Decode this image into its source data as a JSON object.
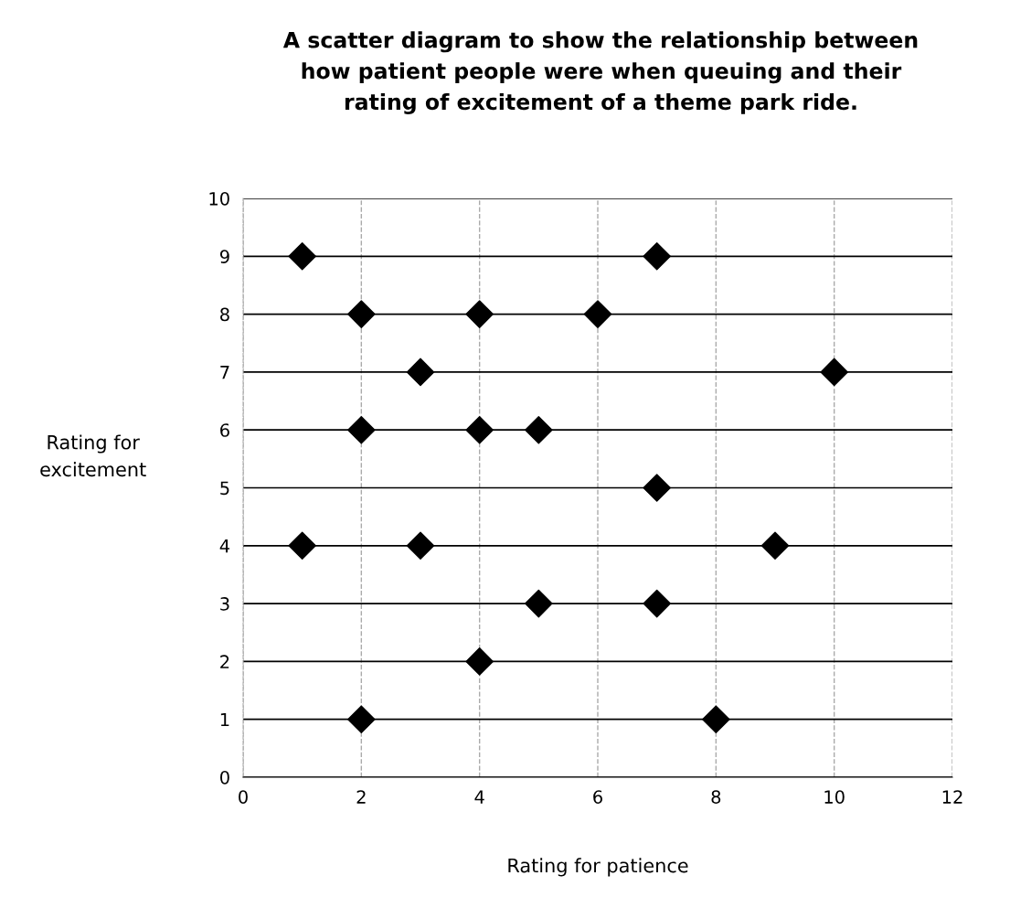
{
  "chart_data": {
    "type": "scatter",
    "title": "A scatter diagram to show the relationship between\nhow patient people were when queuing and their\nrating of excitement of a theme park ride.",
    "xlabel": "Rating for patience",
    "ylabel": "Rating for\nexcitement",
    "x": [
      1,
      7,
      2,
      4,
      6,
      3,
      10,
      2,
      4,
      5,
      7,
      1,
      3,
      9,
      5,
      7,
      4,
      2,
      8
    ],
    "values": [
      9,
      9,
      8,
      8,
      8,
      7,
      7,
      6,
      6,
      6,
      5,
      4,
      4,
      4,
      3,
      3,
      2,
      1,
      1
    ],
    "color": "#000000",
    "marker": "diamond",
    "xlim": [
      0,
      12
    ],
    "xticks": [
      0,
      2,
      4,
      6,
      8,
      10,
      12
    ],
    "ylim": [
      0,
      10
    ],
    "yticks": [
      0,
      1,
      2,
      3,
      4,
      5,
      6,
      7,
      8,
      9,
      10
    ],
    "grid": true,
    "legend": false
  }
}
